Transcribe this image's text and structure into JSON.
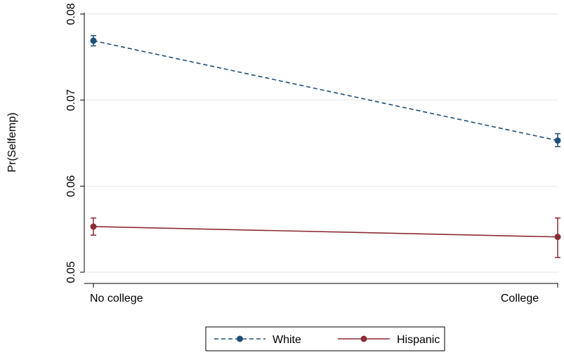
{
  "chart_data": {
    "type": "line",
    "title": "",
    "xlabel": "",
    "ylabel": "Pr(Selfemp)",
    "categories": [
      "No college",
      "College"
    ],
    "ylim": [
      0.05,
      0.08
    ],
    "yticks": [
      "0.05",
      "0.06",
      "0.07",
      "0.08"
    ],
    "grid": true,
    "legend_position": "bottom",
    "series": [
      {
        "name": "White",
        "values": [
          0.0769,
          0.0653
        ],
        "ci_low": [
          0.0763,
          0.0646
        ],
        "ci_high": [
          0.0775,
          0.0661
        ],
        "color": "#1f4e79",
        "line_style": "dashed"
      },
      {
        "name": "Hispanic",
        "values": [
          0.0553,
          0.0541
        ],
        "ci_low": [
          0.0543,
          0.0517
        ],
        "ci_high": [
          0.0563,
          0.0563
        ],
        "color": "#8b2c35",
        "line_style": "solid"
      }
    ]
  }
}
